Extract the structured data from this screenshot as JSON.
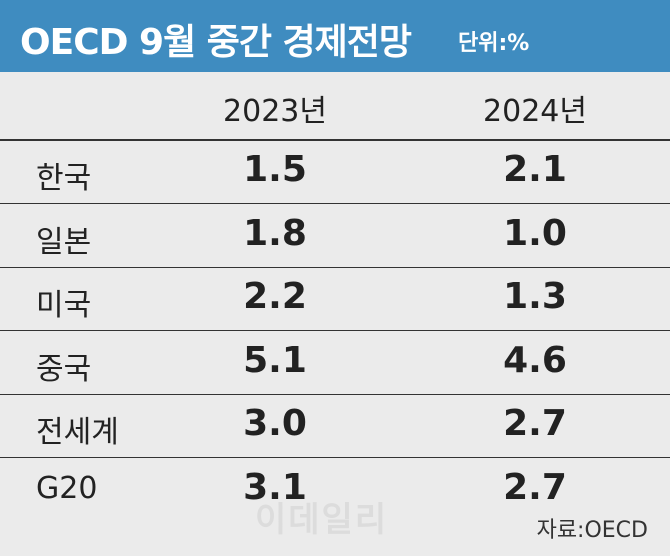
{
  "header": {
    "title": "OECD 9월 중간 경제전망",
    "unit": "단위:%"
  },
  "table": {
    "columns": [
      "2023년",
      "2024년"
    ],
    "rows": [
      [
        "한국",
        "1.5",
        "2.1"
      ],
      [
        "일본",
        "1.8",
        "1.0"
      ],
      [
        "미국",
        "2.2",
        "1.3"
      ],
      [
        "중국",
        "5.1",
        "4.6"
      ],
      [
        "전세계",
        "3.0",
        "2.7"
      ],
      [
        "G20",
        "3.1",
        "2.7"
      ]
    ]
  },
  "watermark": "이데일리",
  "source": "자료:OECD"
}
